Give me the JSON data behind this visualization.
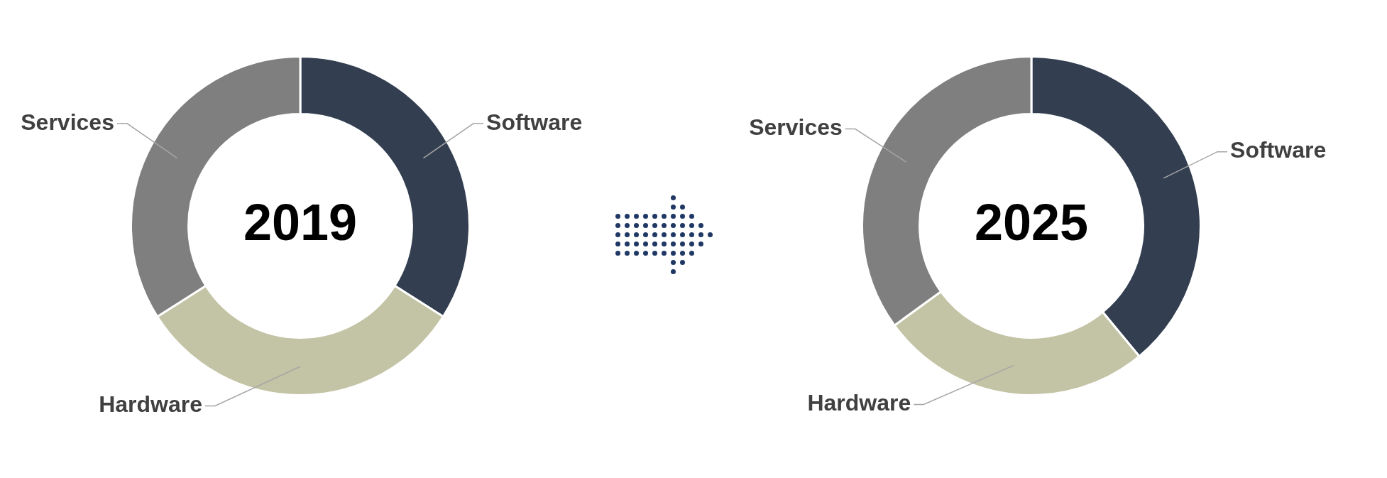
{
  "chart_data": [
    {
      "type": "donut",
      "title": "2019",
      "categories": [
        "Software",
        "Hardware",
        "Services"
      ],
      "values": [
        34,
        32,
        34
      ],
      "colors": [
        "#333f50",
        "#c3c3a5",
        "#7f7f7f"
      ]
    },
    {
      "type": "donut",
      "title": "2025",
      "categories": [
        "Software",
        "Hardware",
        "Services"
      ],
      "values": [
        39,
        26,
        35
      ],
      "colors": [
        "#333f50",
        "#c3c3a5",
        "#7f7f7f"
      ]
    }
  ]
}
